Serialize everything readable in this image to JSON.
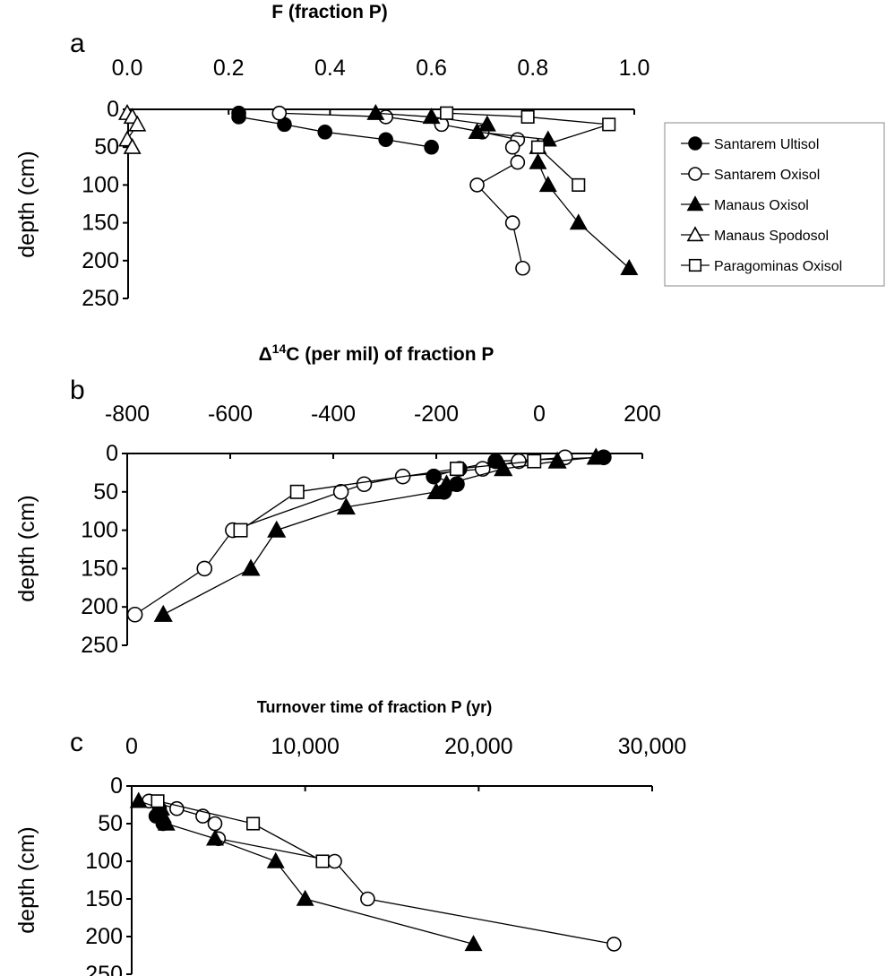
{
  "chart_data": [
    {
      "panel": "a",
      "type": "scatter",
      "title": "F (fraction P)",
      "xlabel": "F (fraction P)",
      "ylabel": "depth (cm)",
      "xlim": [
        0,
        1
      ],
      "ylim": [
        0,
        250
      ],
      "xticks": [
        "0.0",
        "0.2",
        "0.4",
        "0.6",
        "0.8",
        "1.0"
      ],
      "yticks": [
        "0",
        "50",
        "100",
        "150",
        "200",
        "250"
      ],
      "grid": false,
      "legend_position": "right",
      "series": [
        {
          "name": "Santarem Ultisol",
          "marker": "circle-filled",
          "points": [
            [
              0.22,
              5
            ],
            [
              0.22,
              10
            ],
            [
              0.31,
              20
            ],
            [
              0.39,
              30
            ],
            [
              0.51,
              40
            ],
            [
              0.6,
              50
            ]
          ]
        },
        {
          "name": "Santarem Oxisol",
          "marker": "circle-open",
          "points": [
            [
              0.3,
              5
            ],
            [
              0.51,
              10
            ],
            [
              0.62,
              20
            ],
            [
              0.7,
              30
            ],
            [
              0.77,
              40
            ],
            [
              0.76,
              50
            ],
            [
              0.77,
              70
            ],
            [
              0.69,
              100
            ],
            [
              0.76,
              150
            ],
            [
              0.78,
              210
            ]
          ]
        },
        {
          "name": "Manaus Oxisol",
          "marker": "triangle-filled",
          "points": [
            [
              0.49,
              5
            ],
            [
              0.6,
              10
            ],
            [
              0.71,
              20
            ],
            [
              0.69,
              30
            ],
            [
              0.83,
              40
            ],
            [
              0.81,
              50
            ],
            [
              0.81,
              70
            ],
            [
              0.83,
              100
            ],
            [
              0.89,
              150
            ],
            [
              0.99,
              210
            ]
          ]
        },
        {
          "name": "Manaus Spodosol",
          "marker": "triangle-open",
          "points": [
            [
              0.0,
              5
            ],
            [
              0.01,
              10
            ],
            [
              0.02,
              20
            ],
            [
              0.0,
              40
            ],
            [
              0.01,
              50
            ]
          ]
        },
        {
          "name": "Paragominas Oxisol",
          "marker": "square-open",
          "points": [
            [
              0.63,
              5
            ],
            [
              0.79,
              10
            ],
            [
              0.95,
              20
            ],
            [
              0.81,
              50
            ],
            [
              0.89,
              100
            ]
          ]
        }
      ]
    },
    {
      "panel": "b",
      "type": "scatter",
      "title": "Δ14C (per mil) of fraction P",
      "xlabel_prefix": "Δ",
      "xlabel_super": "14",
      "xlabel_main": "C (per mil) of fraction P",
      "ylabel": "depth (cm)",
      "xlim": [
        -800,
        200
      ],
      "ylim": [
        0,
        250
      ],
      "xticks": [
        "-800",
        "-600",
        "-400",
        "-200",
        "0",
        "200"
      ],
      "yticks": [
        "0",
        "50",
        "100",
        "150",
        "200",
        "250"
      ],
      "grid": false,
      "series": [
        {
          "name": "Santarem Ultisol",
          "marker": "circle-filled",
          "points": [
            [
              125,
              5
            ],
            [
              -85,
              10
            ],
            [
              -155,
              20
            ],
            [
              -205,
              30
            ],
            [
              -160,
              40
            ],
            [
              -185,
              50
            ]
          ]
        },
        {
          "name": "Santarem Oxisol",
          "marker": "circle-open",
          "points": [
            [
              50,
              5
            ],
            [
              -40,
              10
            ],
            [
              -110,
              20
            ],
            [
              -265,
              30
            ],
            [
              -340,
              40
            ],
            [
              -385,
              50
            ],
            [
              -595,
              100
            ],
            [
              -650,
              150
            ],
            [
              -785,
              210
            ]
          ]
        },
        {
          "name": "Manaus Oxisol",
          "marker": "triangle-filled",
          "points": [
            [
              110,
              5
            ],
            [
              35,
              10
            ],
            [
              -70,
              20
            ],
            [
              -180,
              40
            ],
            [
              -200,
              50
            ],
            [
              -375,
              70
            ],
            [
              -510,
              100
            ],
            [
              -560,
              150
            ],
            [
              -730,
              210
            ]
          ]
        },
        {
          "name": "Paragominas Oxisol",
          "marker": "square-open",
          "points": [
            [
              -10,
              10
            ],
            [
              -160,
              20
            ],
            [
              -470,
              50
            ],
            [
              -580,
              100
            ]
          ]
        }
      ]
    },
    {
      "panel": "c",
      "type": "scatter",
      "title": "Turnover time of fraction P (yr)",
      "xlabel": "Turnover time of fraction P (yr)",
      "ylabel": "depth (cm)",
      "xlim": [
        0,
        30000
      ],
      "ylim": [
        0,
        250
      ],
      "xticks": [
        "0",
        "10,000",
        "20,000",
        "30,000"
      ],
      "yticks": [
        "0",
        "50",
        "100",
        "150",
        "200",
        "250"
      ],
      "grid": false,
      "series": [
        {
          "name": "Santarem Ultisol",
          "marker": "circle-filled",
          "points": [
            [
              1600,
              30
            ],
            [
              1400,
              40
            ],
            [
              1800,
              50
            ]
          ]
        },
        {
          "name": "Santarem Oxisol",
          "marker": "circle-open",
          "points": [
            [
              1000,
              20
            ],
            [
              2600,
              30
            ],
            [
              4100,
              40
            ],
            [
              4800,
              50
            ],
            [
              5000,
              70
            ],
            [
              11700,
              100
            ],
            [
              13600,
              150
            ],
            [
              27800,
              210
            ]
          ]
        },
        {
          "name": "Manaus Oxisol",
          "marker": "triangle-filled",
          "points": [
            [
              400,
              20
            ],
            [
              1700,
              30
            ],
            [
              1800,
              40
            ],
            [
              2000,
              50
            ],
            [
              4800,
              70
            ],
            [
              8300,
              100
            ],
            [
              10000,
              150
            ],
            [
              19700,
              210
            ]
          ]
        },
        {
          "name": "Paragominas Oxisol",
          "marker": "square-open",
          "points": [
            [
              1500,
              20
            ],
            [
              7000,
              50
            ],
            [
              11000,
              100
            ]
          ]
        }
      ]
    }
  ],
  "panels": {
    "a": {
      "letter": "a"
    },
    "b": {
      "letter": "b"
    },
    "c": {
      "letter": "c"
    }
  },
  "legend": {
    "items": [
      {
        "label": "Santarem Ultisol",
        "marker": "circle-filled"
      },
      {
        "label": "Santarem Oxisol",
        "marker": "circle-open"
      },
      {
        "label": "Manaus Oxisol",
        "marker": "triangle-filled"
      },
      {
        "label": "Manaus Spodosol",
        "marker": "triangle-open"
      },
      {
        "label": "Paragominas Oxisol",
        "marker": "square-open"
      }
    ]
  }
}
